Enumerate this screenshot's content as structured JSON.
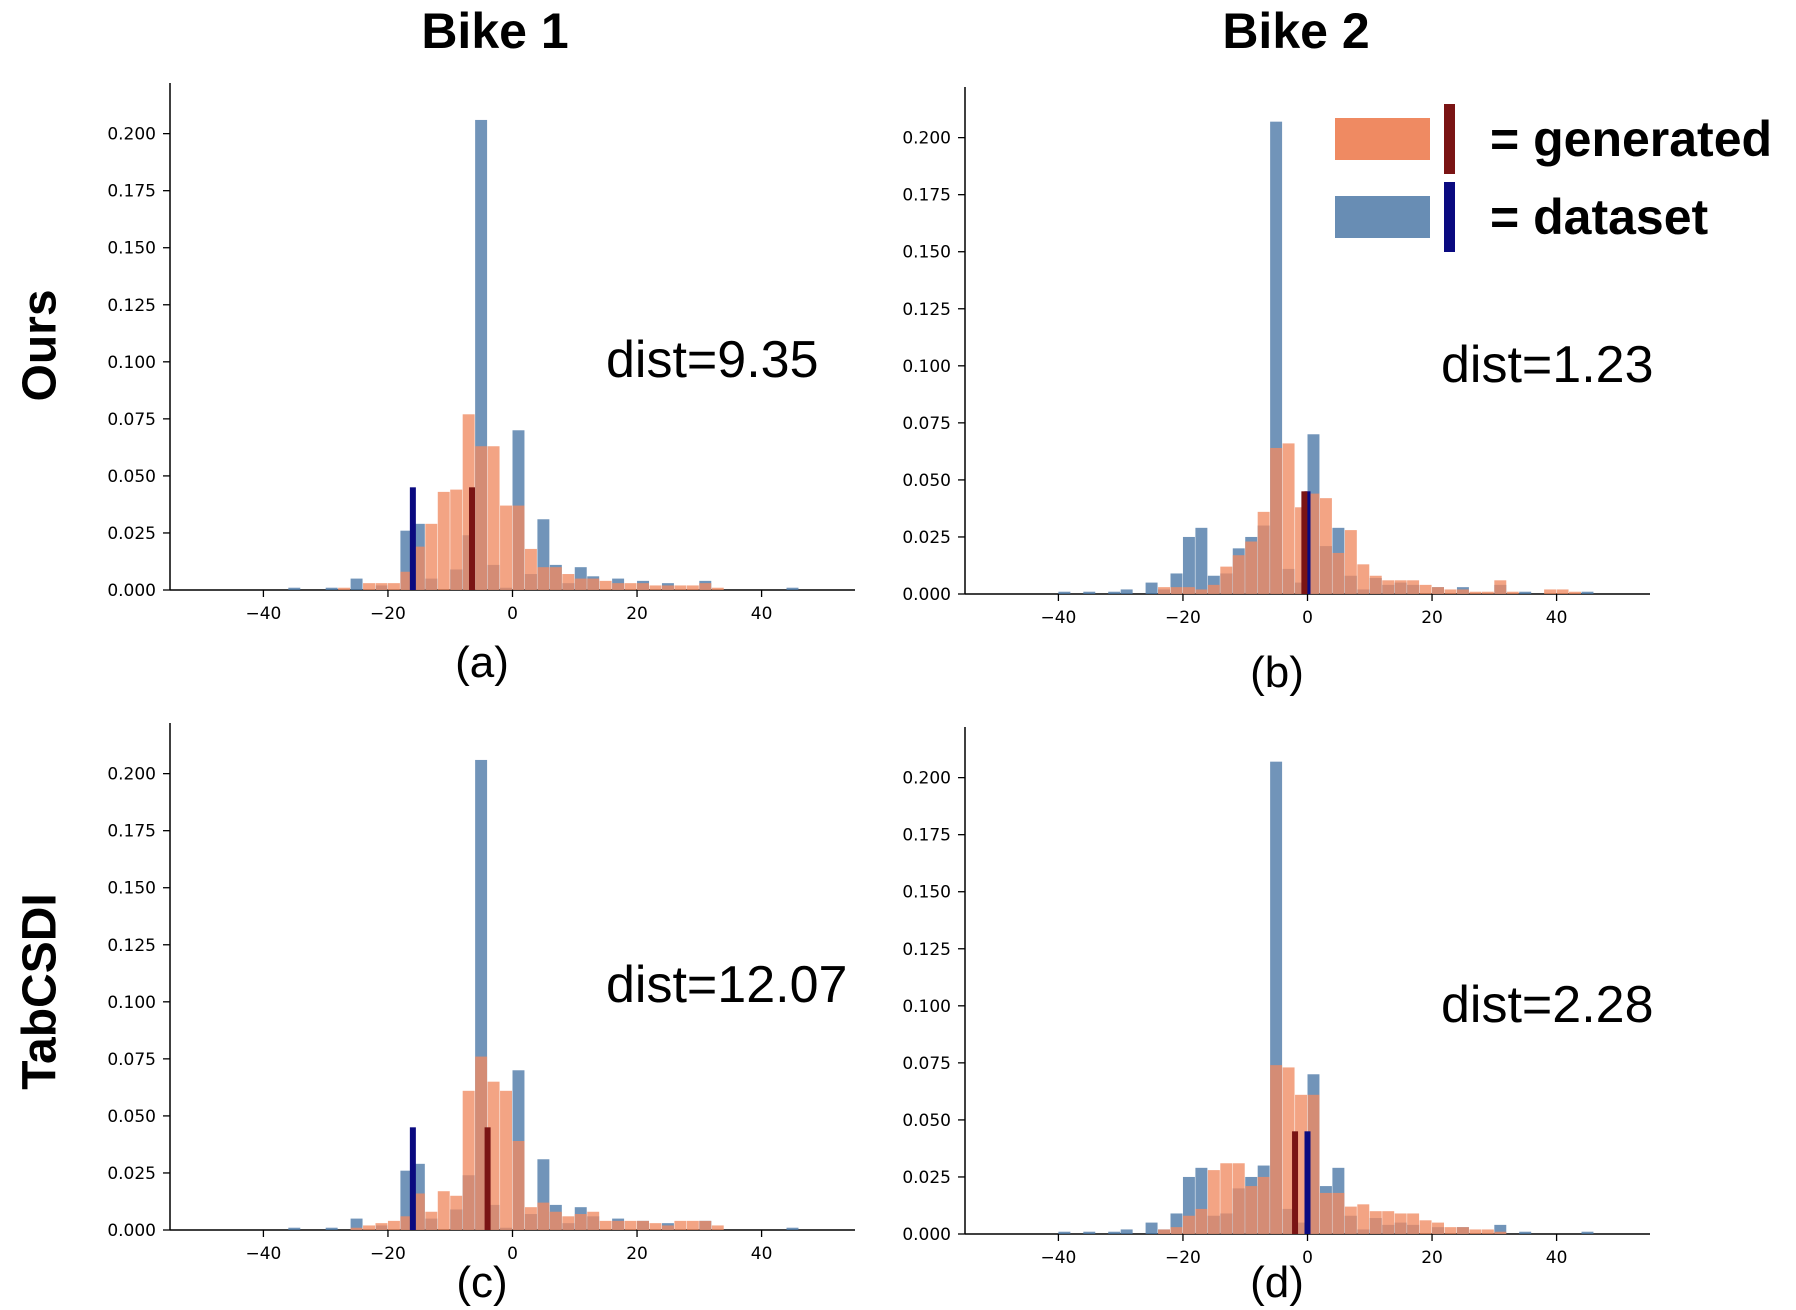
{
  "column_titles": [
    "Bike 1",
    "Bike 2"
  ],
  "row_titles": [
    "Ours",
    "TabCSDI"
  ],
  "legend": {
    "generated_label": "= generated",
    "dataset_label": "= dataset",
    "generated_hist_color": "#ef8a62",
    "generated_line_color": "#7a1414",
    "dataset_hist_color": "#4e79a7",
    "dataset_line_color": "#0a0a80"
  },
  "chart_data": [
    {
      "id": "a",
      "type": "bar",
      "caption": "(a)",
      "annotation": "dist=9.35",
      "xlim": [
        -55,
        55
      ],
      "ylim": [
        0,
        0.22
      ],
      "xticks": [
        -40,
        -20,
        0,
        20,
        40
      ],
      "xtick_labels": [
        "−40",
        "−20",
        "0",
        "20",
        "40"
      ],
      "yticks": [
        0,
        0.025,
        0.05,
        0.075,
        0.1,
        0.125,
        0.15,
        0.175,
        0.2
      ],
      "ytick_labels": [
        "0.000",
        "0.025",
        "0.050",
        "0.075",
        "0.100",
        "0.125",
        "0.150",
        "0.175",
        "0.200"
      ],
      "bin_width": 2,
      "series": [
        {
          "name": "dataset",
          "x": [
            -36,
            -30,
            -26,
            -22,
            -18,
            -16,
            -14,
            -10,
            -8,
            -6,
            -4,
            -2,
            0,
            2,
            4,
            6,
            8,
            10,
            12,
            16,
            20,
            24,
            30,
            44
          ],
          "values": [
            0.001,
            0.001,
            0.005,
            0.002,
            0.026,
            0.029,
            0.005,
            0.009,
            0.024,
            0.206,
            0.011,
            0.001,
            0.07,
            0.007,
            0.031,
            0.011,
            0.003,
            0.01,
            0.006,
            0.005,
            0.004,
            0.003,
            0.004,
            0.001
          ]
        },
        {
          "name": "generated",
          "x": [
            -28,
            -24,
            -22,
            -20,
            -18,
            -16,
            -14,
            -12,
            -10,
            -8,
            -6,
            -4,
            -2,
            0,
            2,
            4,
            6,
            8,
            10,
            12,
            14,
            16,
            18,
            20,
            22,
            24,
            26,
            28,
            30,
            32
          ],
          "values": [
            0.001,
            0.003,
            0.003,
            0.003,
            0.008,
            0.019,
            0.029,
            0.043,
            0.044,
            0.077,
            0.063,
            0.063,
            0.037,
            0.037,
            0.018,
            0.01,
            0.01,
            0.007,
            0.005,
            0.005,
            0.004,
            0.003,
            0.003,
            0.003,
            0.002,
            0.002,
            0.002,
            0.002,
            0.003,
            0.001
          ]
        }
      ],
      "mean_lines": [
        {
          "name": "dataset",
          "x": -16,
          "height": 0.045
        },
        {
          "name": "generated",
          "x": -6.5,
          "height": 0.045
        }
      ]
    },
    {
      "id": "b",
      "type": "bar",
      "caption": "(b)",
      "annotation": "dist=1.23",
      "xlim": [
        -55,
        55
      ],
      "ylim": [
        0,
        0.22
      ],
      "xticks": [
        -40,
        -20,
        0,
        20,
        40
      ],
      "xtick_labels": [
        "−40",
        "−20",
        "0",
        "20",
        "40"
      ],
      "yticks": [
        0,
        0.025,
        0.05,
        0.075,
        0.1,
        0.125,
        0.15,
        0.175,
        0.2
      ],
      "ytick_labels": [
        "0.000",
        "0.025",
        "0.050",
        "0.075",
        "0.100",
        "0.125",
        "0.150",
        "0.175",
        "0.200"
      ],
      "bin_width": 2,
      "series": [
        {
          "name": "dataset",
          "x": [
            -40,
            -36,
            -32,
            -30,
            -26,
            -24,
            -22,
            -20,
            -18,
            -16,
            -14,
            -12,
            -10,
            -8,
            -6,
            -4,
            -2,
            0,
            2,
            4,
            6,
            8,
            10,
            12,
            14,
            16,
            20,
            24,
            30,
            34,
            44
          ],
          "values": [
            0.001,
            0.001,
            0.001,
            0.002,
            0.005,
            0.002,
            0.009,
            0.025,
            0.029,
            0.008,
            0.009,
            0.02,
            0.025,
            0.03,
            0.207,
            0.011,
            0.005,
            0.07,
            0.021,
            0.029,
            0.008,
            0.002,
            0.007,
            0.004,
            0.005,
            0.004,
            0.003,
            0.003,
            0.004,
            0.001,
            0.001
          ]
        },
        {
          "name": "generated",
          "x": [
            -24,
            -22,
            -20,
            -18,
            -16,
            -14,
            -12,
            -10,
            -8,
            -6,
            -4,
            -2,
            0,
            2,
            4,
            6,
            8,
            10,
            12,
            14,
            16,
            18,
            20,
            22,
            24,
            26,
            28,
            30,
            32,
            38,
            40,
            42
          ],
          "values": [
            0.003,
            0.003,
            0.003,
            0.002,
            0.004,
            0.012,
            0.017,
            0.023,
            0.036,
            0.064,
            0.066,
            0.038,
            0.044,
            0.042,
            0.018,
            0.028,
            0.013,
            0.008,
            0.006,
            0.006,
            0.006,
            0.004,
            0.003,
            0.002,
            0.002,
            0.001,
            0.001,
            0.006,
            0.001,
            0.002,
            0.002,
            0.001
          ]
        }
      ],
      "mean_lines": [
        {
          "name": "dataset",
          "x": 0,
          "height": 0.045
        },
        {
          "name": "generated",
          "x": -0.5,
          "height": 0.045
        }
      ]
    },
    {
      "id": "c",
      "type": "bar",
      "caption": "(c)",
      "annotation": "dist=12.07",
      "xlim": [
        -55,
        55
      ],
      "ylim": [
        0,
        0.22
      ],
      "xticks": [
        -40,
        -20,
        0,
        20,
        40
      ],
      "xtick_labels": [
        "−40",
        "−20",
        "0",
        "20",
        "40"
      ],
      "yticks": [
        0,
        0.025,
        0.05,
        0.075,
        0.1,
        0.125,
        0.15,
        0.175,
        0.2
      ],
      "ytick_labels": [
        "0.000",
        "0.025",
        "0.050",
        "0.075",
        "0.100",
        "0.125",
        "0.150",
        "0.175",
        "0.200"
      ],
      "bin_width": 2,
      "series": [
        {
          "name": "dataset",
          "x": [
            -36,
            -30,
            -26,
            -22,
            -18,
            -16,
            -14,
            -10,
            -8,
            -6,
            -4,
            -2,
            0,
            2,
            4,
            6,
            8,
            10,
            12,
            16,
            20,
            24,
            30,
            44
          ],
          "values": [
            0.001,
            0.001,
            0.005,
            0.002,
            0.026,
            0.029,
            0.005,
            0.009,
            0.024,
            0.206,
            0.011,
            0.001,
            0.07,
            0.007,
            0.031,
            0.011,
            0.003,
            0.01,
            0.006,
            0.005,
            0.004,
            0.003,
            0.004,
            0.001
          ]
        },
        {
          "name": "generated",
          "x": [
            -26,
            -24,
            -22,
            -20,
            -18,
            -16,
            -14,
            -12,
            -10,
            -8,
            -6,
            -4,
            -2,
            0,
            2,
            4,
            6,
            8,
            10,
            12,
            14,
            16,
            18,
            20,
            22,
            24,
            26,
            28,
            30,
            32
          ],
          "values": [
            0.001,
            0.002,
            0.003,
            0.004,
            0.006,
            0.016,
            0.008,
            0.017,
            0.015,
            0.061,
            0.076,
            0.065,
            0.061,
            0.039,
            0.01,
            0.012,
            0.008,
            0.006,
            0.007,
            0.008,
            0.004,
            0.004,
            0.004,
            0.004,
            0.003,
            0.002,
            0.004,
            0.004,
            0.004,
            0.002
          ]
        }
      ],
      "mean_lines": [
        {
          "name": "dataset",
          "x": -16,
          "height": 0.045
        },
        {
          "name": "generated",
          "x": -4,
          "height": 0.045
        }
      ]
    },
    {
      "id": "d",
      "type": "bar",
      "caption": "(d)",
      "annotation": "dist=2.28",
      "xlim": [
        -55,
        55
      ],
      "ylim": [
        0,
        0.22
      ],
      "xticks": [
        -40,
        -20,
        0,
        20,
        40
      ],
      "xtick_labels": [
        "−40",
        "−20",
        "0",
        "20",
        "40"
      ],
      "yticks": [
        0,
        0.025,
        0.05,
        0.075,
        0.1,
        0.125,
        0.15,
        0.175,
        0.2
      ],
      "ytick_labels": [
        "0.000",
        "0.025",
        "0.050",
        "0.075",
        "0.100",
        "0.125",
        "0.150",
        "0.175",
        "0.200"
      ],
      "bin_width": 2,
      "series": [
        {
          "name": "dataset",
          "x": [
            -40,
            -36,
            -32,
            -30,
            -26,
            -24,
            -22,
            -20,
            -18,
            -16,
            -14,
            -12,
            -10,
            -8,
            -6,
            -4,
            -2,
            0,
            2,
            4,
            6,
            8,
            10,
            12,
            14,
            16,
            20,
            24,
            30,
            34,
            44
          ],
          "values": [
            0.001,
            0.001,
            0.001,
            0.002,
            0.005,
            0.002,
            0.009,
            0.025,
            0.029,
            0.008,
            0.009,
            0.02,
            0.025,
            0.03,
            0.207,
            0.011,
            0.005,
            0.07,
            0.021,
            0.029,
            0.008,
            0.002,
            0.007,
            0.004,
            0.005,
            0.004,
            0.003,
            0.003,
            0.004,
            0.001,
            0.001
          ]
        },
        {
          "name": "generated",
          "x": [
            -24,
            -22,
            -20,
            -18,
            -16,
            -14,
            -12,
            -10,
            -8,
            -6,
            -4,
            -2,
            0,
            2,
            4,
            6,
            8,
            10,
            12,
            14,
            16,
            18,
            20,
            22,
            24,
            26,
            28,
            30
          ],
          "values": [
            0.002,
            0.003,
            0.008,
            0.011,
            0.028,
            0.031,
            0.031,
            0.021,
            0.025,
            0.074,
            0.073,
            0.061,
            0.061,
            0.018,
            0.018,
            0.012,
            0.013,
            0.01,
            0.01,
            0.009,
            0.009,
            0.006,
            0.005,
            0.003,
            0.003,
            0.002,
            0.002,
            0.001
          ]
        }
      ],
      "mean_lines": [
        {
          "name": "dataset",
          "x": 0,
          "height": 0.045
        },
        {
          "name": "generated",
          "x": -2,
          "height": 0.045
        }
      ]
    }
  ]
}
